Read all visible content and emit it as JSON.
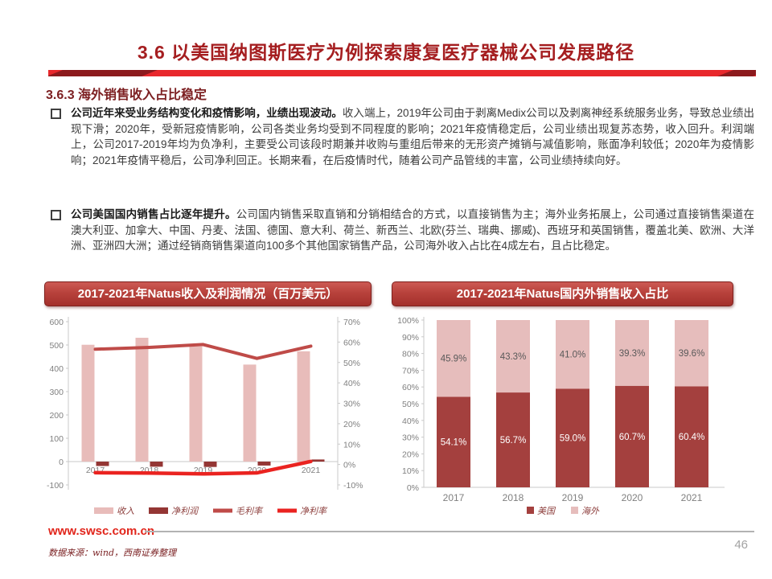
{
  "page": {
    "title": "3.6 以美国纳图斯医疗为例探索康复医疗器械公司发展路径",
    "section_heading": "3.6.3 海外销售收入占比稳定",
    "website": "www.swsc.com.cn",
    "source_note": "数据来源：wind，西南证券整理",
    "page_number": "46"
  },
  "colors": {
    "accent_red": "#e8282c",
    "dark_red": "#8c1a1d",
    "title_red": "#a51e20",
    "banner_red": "#b8423c",
    "revenue_bar": "#e8bcba",
    "net_profit_bar": "#943634",
    "gross_margin_line": "#bf4b48",
    "net_margin_line": "#ea2320",
    "us_bar": "#a4403e",
    "overseas_bar": "#e6bdbc"
  },
  "paragraphs": [
    {
      "lead": "公司近年来受业务结构变化和疫情影响，业绩出现波动。",
      "body": "收入端上，2019年公司由于剥离Medix公司以及剥离神经系统服务业务，导致总业绩出现下滑；2020年，受新冠疫情影响，公司各类业务均受到不同程度的影响；2021年疫情稳定后，公司业绩出现复苏态势，收入回升。利润端上，公司2017-2019年均为负净利，主要受公司该段时期兼并收购与重组后带来的无形资产摊销与减值影响，账面净利较低；2020年为疫情影响；2021年疫情平稳后，公司净利回正。长期来看，在后疫情时代，随着公司产品管线的丰富，公司业绩持续向好。"
    },
    {
      "lead": "公司美国国内销售占比逐年提升。",
      "body": "公司国内销售采取直销和分销相结合的方式，以直接销售为主；海外业务拓展上，公司通过直接销售渠道在澳大利亚、加拿大、中国、丹麦、法国、德国、意大利、荷兰、新西兰、北欧(芬兰、瑞典、挪威)、西班牙和英国销售，覆盖北美、欧洲、大洋洲、亚洲四大洲；通过经销商销售渠道向100多个其他国家销售产品，公司海外收入占比在4成左右，且占比稳定。"
    }
  ],
  "chart_data": [
    {
      "type": "bar",
      "subtype": "combo bar+line, dual axis",
      "title": "2017-2021年Natus收入及利润情况（百万美元）",
      "categories": [
        "2017",
        "2018",
        "2019",
        "2020",
        "2021"
      ],
      "series": [
        {
          "name": "收入",
          "type": "bar",
          "axis": "left",
          "color": "#e8bcba",
          "values": [
            501,
            531,
            494,
            416,
            473
          ]
        },
        {
          "name": "净利润",
          "type": "bar",
          "axis": "left",
          "color": "#943634",
          "values": [
            -19,
            -22,
            -23,
            -17,
            9
          ]
        },
        {
          "name": "毛利率",
          "type": "line",
          "axis": "right",
          "color": "#bf4b48",
          "values_pct": [
            56.5,
            57.4,
            58.8,
            52.0,
            58.0
          ]
        },
        {
          "name": "净利率",
          "type": "line",
          "axis": "right",
          "color": "#ea2320",
          "values_pct": [
            -4.0,
            -4.2,
            -4.6,
            -4.1,
            1.5
          ]
        }
      ],
      "left_axis": {
        "min": -100,
        "max": 600,
        "step": 100,
        "labels": [
          "600",
          "500",
          "400",
          "300",
          "200",
          "100",
          "0",
          "-100"
        ]
      },
      "right_axis": {
        "min": -10,
        "max": 70,
        "step": 10,
        "labels": [
          "70%",
          "60%",
          "50%",
          "40%",
          "30%",
          "20%",
          "10%",
          "0%",
          "-10%"
        ]
      },
      "grid": "zero line only",
      "legend_position": "bottom"
    },
    {
      "type": "bar",
      "subtype": "100% stacked",
      "title": "2017-2021年Natus国内外销售收入占比",
      "categories": [
        "2017",
        "2018",
        "2019",
        "2020",
        "2021"
      ],
      "series": [
        {
          "name": "美国",
          "color": "#a4403e",
          "values": [
            54.1,
            56.7,
            59.0,
            60.7,
            60.4
          ],
          "labels": [
            "54.1%",
            "56.7%",
            "59.0%",
            "60.7%",
            "60.4%"
          ]
        },
        {
          "name": "海外",
          "color": "#e6bdbc",
          "values": [
            45.9,
            43.3,
            41.0,
            39.3,
            39.6
          ],
          "labels": [
            "45.9%",
            "43.3%",
            "41.0%",
            "39.3%",
            "39.6%"
          ]
        }
      ],
      "y_axis": {
        "min": 0,
        "max": 100,
        "step": 10,
        "tick_labels": [
          "0%",
          "10%",
          "20%",
          "30%",
          "40%",
          "50%",
          "60%",
          "70%",
          "80%",
          "90%",
          "100%"
        ]
      },
      "grid": "off",
      "legend_position": "bottom"
    }
  ]
}
